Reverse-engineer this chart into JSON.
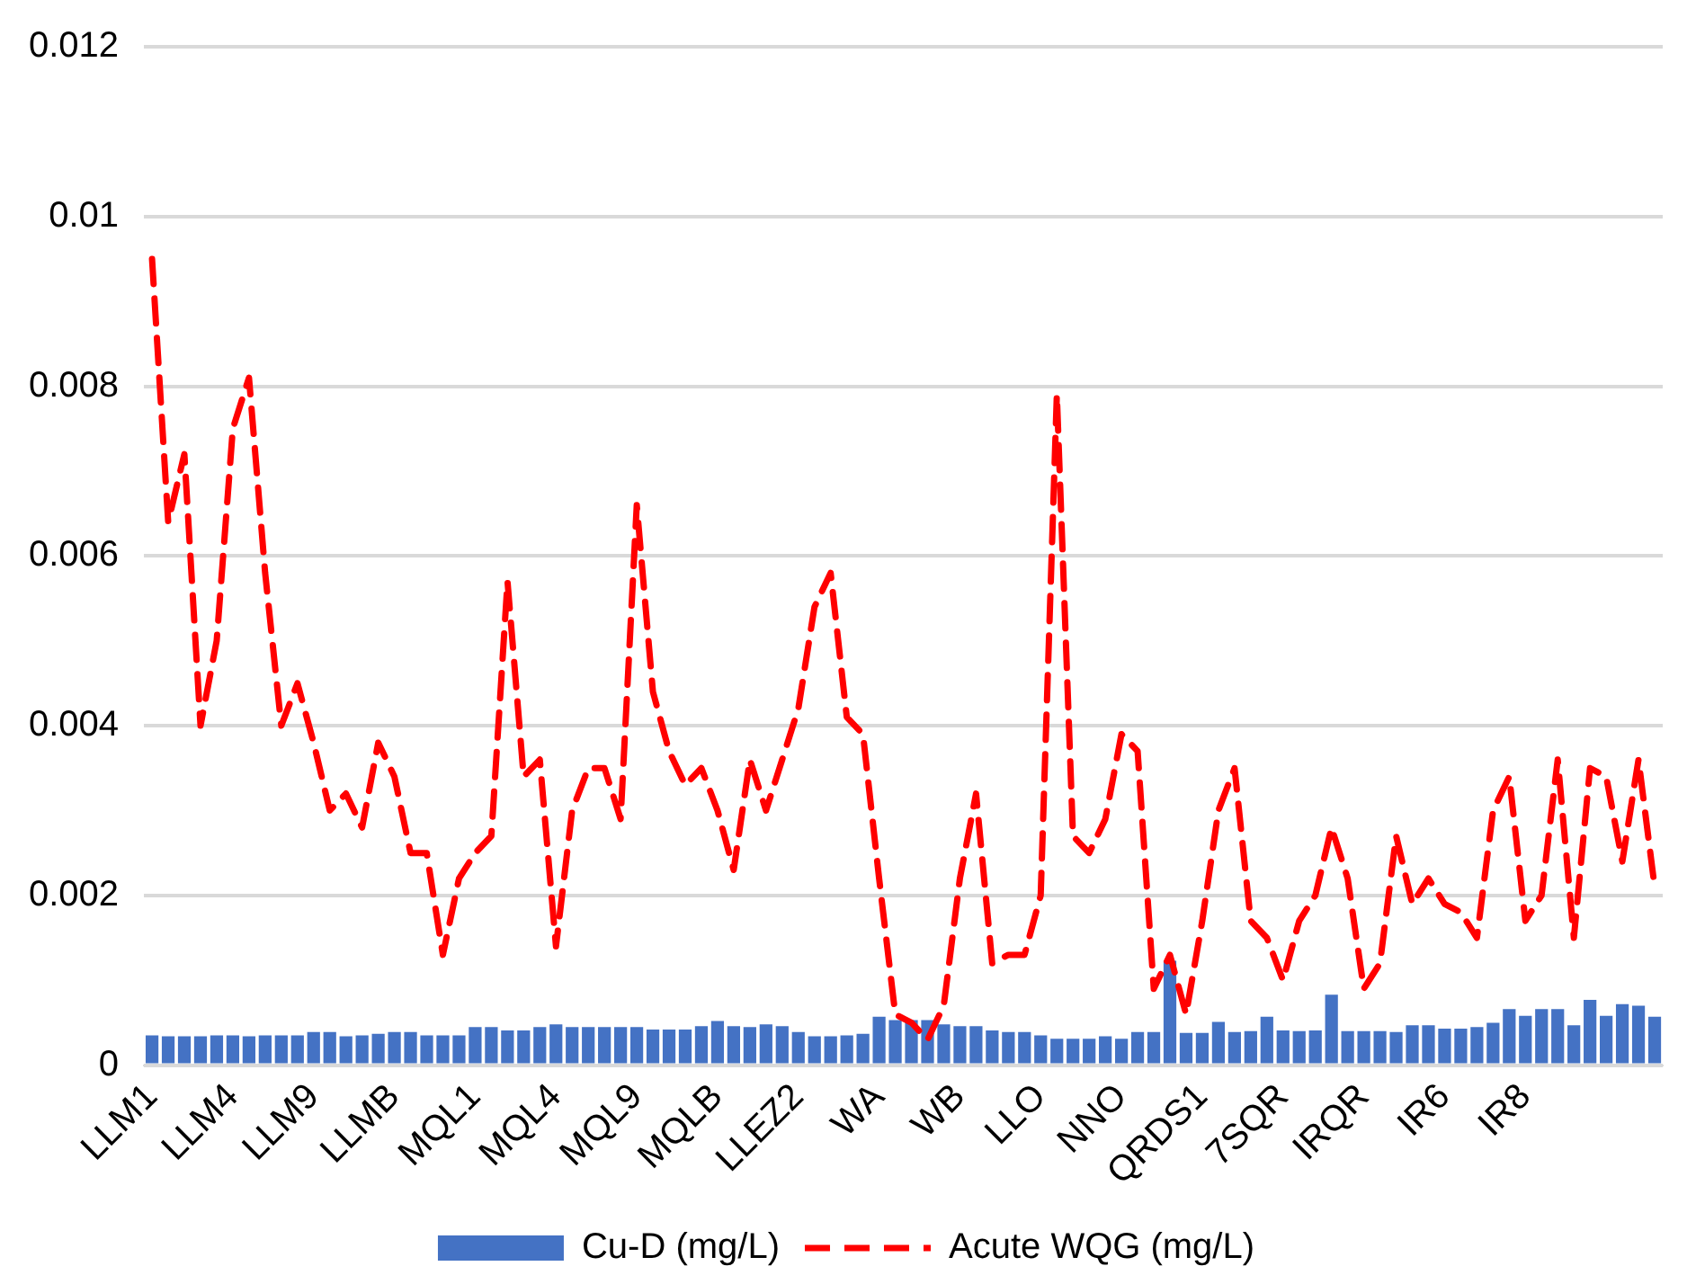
{
  "chart_data": {
    "type": "bar",
    "categories": [
      "LLM1",
      null,
      null,
      null,
      null,
      "LLM4",
      null,
      null,
      null,
      null,
      "LLM9",
      null,
      null,
      null,
      null,
      "LLMB",
      null,
      null,
      null,
      null,
      "MQL1",
      null,
      null,
      null,
      null,
      "MQL4",
      null,
      null,
      null,
      null,
      "MQL9",
      null,
      null,
      null,
      null,
      "MQLB",
      null,
      null,
      null,
      null,
      "LLEZ2",
      null,
      null,
      null,
      null,
      "WA",
      null,
      null,
      null,
      null,
      "WB",
      null,
      null,
      null,
      null,
      "LLO",
      null,
      null,
      null,
      null,
      "NNO",
      null,
      null,
      null,
      null,
      "QRDS1",
      null,
      null,
      null,
      null,
      "7SQR",
      null,
      null,
      null,
      null,
      "IRQR",
      null,
      null,
      null,
      null,
      "IR6",
      null,
      null,
      null,
      null,
      "IR8",
      null,
      null,
      null,
      null,
      null,
      null,
      null,
      null
    ],
    "series": [
      {
        "name": "Cu-D (mg/L)",
        "type": "bar",
        "color": "#4472c4",
        "values": [
          0.00035,
          0.00034,
          0.00034,
          0.00034,
          0.00035,
          0.00035,
          0.00034,
          0.00035,
          0.00035,
          0.00035,
          0.00039,
          0.00039,
          0.00034,
          0.00035,
          0.00037,
          0.00039,
          0.00039,
          0.00035,
          0.00035,
          0.00035,
          0.00045,
          0.00045,
          0.00041,
          0.00041,
          0.00045,
          0.00048,
          0.00045,
          0.00045,
          0.00045,
          0.00045,
          0.00045,
          0.00042,
          0.00042,
          0.00042,
          0.00046,
          0.00052,
          0.00046,
          0.00045,
          0.00048,
          0.00046,
          0.00039,
          0.00034,
          0.00034,
          0.00035,
          0.00037,
          0.00057,
          0.00053,
          0.00053,
          0.00053,
          0.00048,
          0.00046,
          0.00046,
          0.00041,
          0.00039,
          0.00039,
          0.00035,
          0.00031,
          0.00031,
          0.00031,
          0.00034,
          0.00031,
          0.00039,
          0.00039,
          0.00123,
          0.00038,
          0.00038,
          0.00051,
          0.00039,
          0.0004,
          0.00057,
          0.00041,
          0.0004,
          0.00041,
          0.00083,
          0.0004,
          0.0004,
          0.0004,
          0.00039,
          0.00047,
          0.00047,
          0.00043,
          0.00043,
          0.00045,
          0.0005,
          0.00066,
          0.00058,
          0.00066,
          0.00066,
          0.00047,
          0.00077,
          0.00058,
          0.00072,
          0.0007,
          0.00057
        ]
      },
      {
        "name": "Acute WQG (mg/L)",
        "type": "line",
        "color": "#ff0000",
        "line_style": "dashed",
        "values": [
          0.0095,
          0.0064,
          0.0072,
          0.004,
          0.005,
          0.0075,
          0.0081,
          0.0058,
          0.004,
          0.0045,
          0.0038,
          0.003,
          0.0032,
          0.0028,
          0.0038,
          0.0034,
          0.0025,
          0.0025,
          0.0013,
          0.0022,
          0.0025,
          0.0027,
          0.0057,
          0.0034,
          0.0036,
          0.0014,
          0.003,
          0.0035,
          0.0035,
          0.0029,
          0.0066,
          0.0044,
          0.0037,
          0.0033,
          0.0035,
          0.003,
          0.0023,
          0.0036,
          0.003,
          0.0036,
          0.0042,
          0.0054,
          0.0058,
          0.0041,
          0.0039,
          0.0022,
          0.0006,
          0.0005,
          0.0003,
          0.0007,
          0.0022,
          0.0032,
          0.0012,
          0.0013,
          0.0013,
          0.002,
          0.0079,
          0.0027,
          0.0025,
          0.0029,
          0.0039,
          0.0037,
          0.0009,
          0.0013,
          0.0006,
          0.0017,
          0.003,
          0.0035,
          0.0017,
          0.0015,
          0.001,
          0.0017,
          0.002,
          0.0028,
          0.0022,
          0.0009,
          0.0012,
          0.0027,
          0.0019,
          0.0022,
          0.0019,
          0.0018,
          0.0015,
          0.003,
          0.0034,
          0.0017,
          0.002,
          0.0036,
          0.0015,
          0.0035,
          0.0034,
          0.0024,
          0.0036,
          0.0021
        ]
      }
    ],
    "ylim": [
      0,
      0.012
    ],
    "yticks": [
      0,
      0.002,
      0.004,
      0.006,
      0.008,
      0.01,
      0.012
    ],
    "grid": "y",
    "legend": "bottom",
    "marker": "none"
  }
}
